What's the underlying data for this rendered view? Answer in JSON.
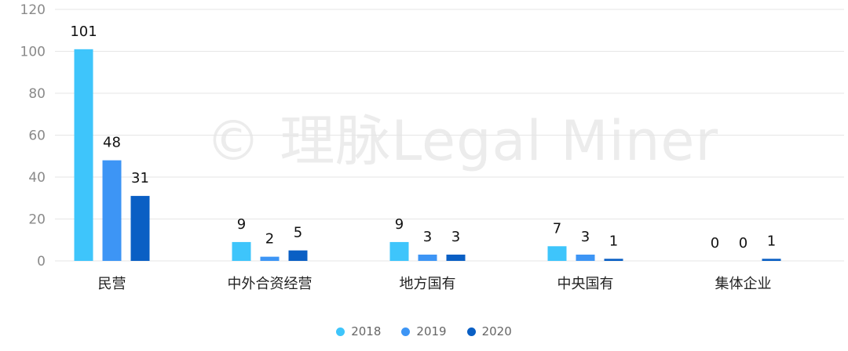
{
  "watermark": "© 理脉Legal Miner",
  "chart_data": {
    "type": "bar",
    "title": "",
    "xlabel": "",
    "ylabel": "",
    "categories": [
      "民营",
      "中外合资经营",
      "地方国有",
      "中央国有",
      "集体企业"
    ],
    "series": [
      {
        "name": "2018",
        "color": "#3ec5fb",
        "values": [
          101,
          9,
          9,
          7,
          0
        ]
      },
      {
        "name": "2019",
        "color": "#3d95f5",
        "values": [
          48,
          2,
          3,
          3,
          0
        ]
      },
      {
        "name": "2020",
        "color": "#0a5fc4",
        "values": [
          31,
          5,
          3,
          1,
          1
        ]
      }
    ],
    "ylim": [
      0,
      120
    ],
    "yticks": [
      "0",
      "20",
      "40",
      "60",
      "80",
      "100",
      "120"
    ],
    "grid": true,
    "legend_position": "bottom-center"
  }
}
